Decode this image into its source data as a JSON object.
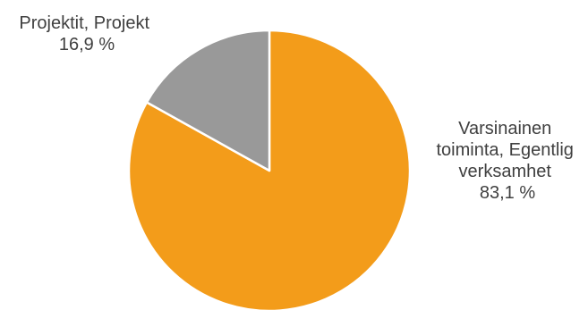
{
  "chart_data": {
    "type": "pie",
    "slices": [
      {
        "label_lines": [
          "Varsinainen",
          "toiminta, Egentlig",
          "verksamhet"
        ],
        "value": 83.1,
        "value_label": "83,1 %",
        "color": "#F39C1A"
      },
      {
        "label_lines": [
          "Projektit, Projekt"
        ],
        "value": 16.9,
        "value_label": "16,9 %",
        "color": "#999999"
      }
    ],
    "start": "12 o'clock",
    "direction": "clockwise",
    "legend": "none"
  }
}
